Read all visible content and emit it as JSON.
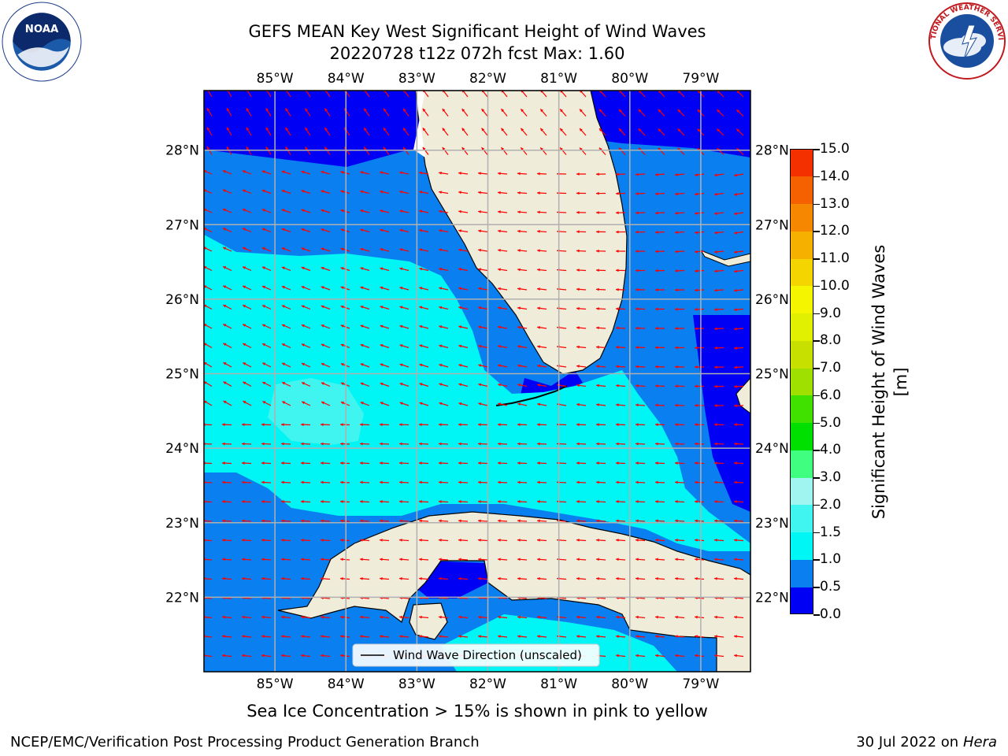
{
  "title_line1": "GEFS MEAN Key West Significant Height of Wind Waves",
  "title_line2": "20220728 t12z 072h fcst   Max: 1.60",
  "map": {
    "lon_labels": [
      "85°W",
      "84°W",
      "83°W",
      "82°W",
      "81°W",
      "80°W",
      "79°W"
    ],
    "lat_labels": [
      "28°N",
      "27°N",
      "26°N",
      "25°N",
      "24°N",
      "23°N",
      "22°N"
    ],
    "lon_values": [
      -85,
      -84,
      -83,
      -82,
      -81,
      -80,
      -79
    ],
    "lat_values": [
      28,
      27,
      26,
      25,
      24,
      23,
      22
    ],
    "extent": {
      "lon_min": -86.0,
      "lon_max": -78.3,
      "lat_min": 21.0,
      "lat_max": 28.8
    },
    "legend_label": "Wind Wave Direction (unscaled)",
    "vector_color": "#ff0000",
    "land_color": "#efedd9",
    "grid_color": "#b0b0b0"
  },
  "colorbar": {
    "label": "Significant Height of Wind Waves [m]",
    "ticks": [
      "0.0",
      "0.5",
      "1.0",
      "1.5",
      "2.0",
      "3.0",
      "4.0",
      "5.0",
      "6.0",
      "7.0",
      "8.0",
      "9.0",
      "10.0",
      "11.0",
      "12.0",
      "13.0",
      "14.0",
      "15.0"
    ],
    "colors": [
      "#0000f5",
      "#0a80f0",
      "#00f5f5",
      "#40f5f0",
      "#a0f5f0",
      "#40ff80",
      "#00e000",
      "#40e000",
      "#a0e000",
      "#c8e000",
      "#e0f000",
      "#f5f500",
      "#f5d500",
      "#f5b000",
      "#f58800",
      "#f56000",
      "#f53000"
    ]
  },
  "subcaption": "Sea Ice Concentration > 15% is shown in pink to yellow",
  "footer_left": "NCEP/EMC/Verification Post Processing Product Generation Branch",
  "footer_right_prefix": "30 Jul 2022 on ",
  "footer_right_italic": "Hera",
  "logos": {
    "left": "NOAA",
    "right": "NATIONAL WEATHER SERVICE"
  }
}
